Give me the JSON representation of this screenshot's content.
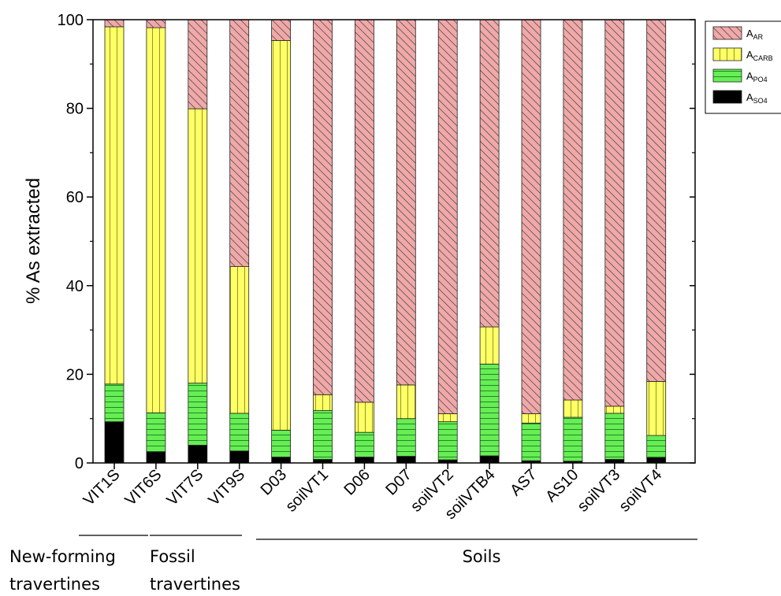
{
  "chart_data": {
    "type": "bar",
    "stacked": true,
    "ylabel": "% As extracted",
    "ylim": [
      0,
      100
    ],
    "yticks": [
      0,
      20,
      40,
      60,
      80,
      100
    ],
    "categories": [
      "VIT1S",
      "VIT6S",
      "VIT7S",
      "VIT9S",
      "D03",
      "soilVT1",
      "D06",
      "D07",
      "soilVT2",
      "soilVTB4",
      "AS7",
      "AS10",
      "soilVT3",
      "soilVT4"
    ],
    "series": [
      {
        "name": "SO4",
        "legend_main": "A",
        "legend_sub": "SO4",
        "color": "#000000",
        "pattern": "solid",
        "values": [
          9.3,
          2.5,
          4.0,
          2.7,
          1.3,
          0.8,
          1.3,
          1.5,
          0.7,
          1.6,
          0.5,
          0.4,
          0.8,
          1.2
        ]
      },
      {
        "name": "PO4",
        "legend_main": "A",
        "legend_sub": "PO4",
        "color": "#66ee55",
        "pattern": "horizontal",
        "values": [
          8.5,
          8.8,
          14.0,
          8.5,
          6.1,
          11.0,
          5.6,
          8.5,
          8.6,
          20.7,
          8.5,
          9.9,
          10.4,
          5.0
        ]
      },
      {
        "name": "CARB",
        "legend_main": "A",
        "legend_sub": "CARB",
        "color": "#ffff66",
        "pattern": "vertical",
        "values": [
          80.6,
          86.9,
          61.9,
          33.1,
          87.9,
          3.6,
          6.8,
          7.6,
          1.8,
          8.4,
          2.1,
          3.9,
          1.6,
          12.2
        ]
      },
      {
        "name": "AR",
        "legend_main": "A",
        "legend_sub": "AR",
        "color": "#f2a8a8",
        "pattern": "diagonal",
        "values": [
          1.6,
          1.8,
          20.1,
          55.7,
          4.7,
          84.6,
          86.3,
          82.4,
          88.9,
          69.3,
          88.9,
          85.8,
          87.2,
          81.6
        ]
      }
    ],
    "legend_order": [
      "AR",
      "CARB",
      "PO4",
      "SO4"
    ],
    "legend_position": "top-right",
    "groups": [
      {
        "label_lines": [
          "New-forming",
          "travertines"
        ],
        "from": 0,
        "to": 0
      },
      {
        "label_lines": [
          "Fossil",
          "travertines"
        ],
        "from": 1,
        "to": 2
      },
      {
        "label_lines": [
          "Soils"
        ],
        "from": 4,
        "to": 13
      }
    ]
  }
}
